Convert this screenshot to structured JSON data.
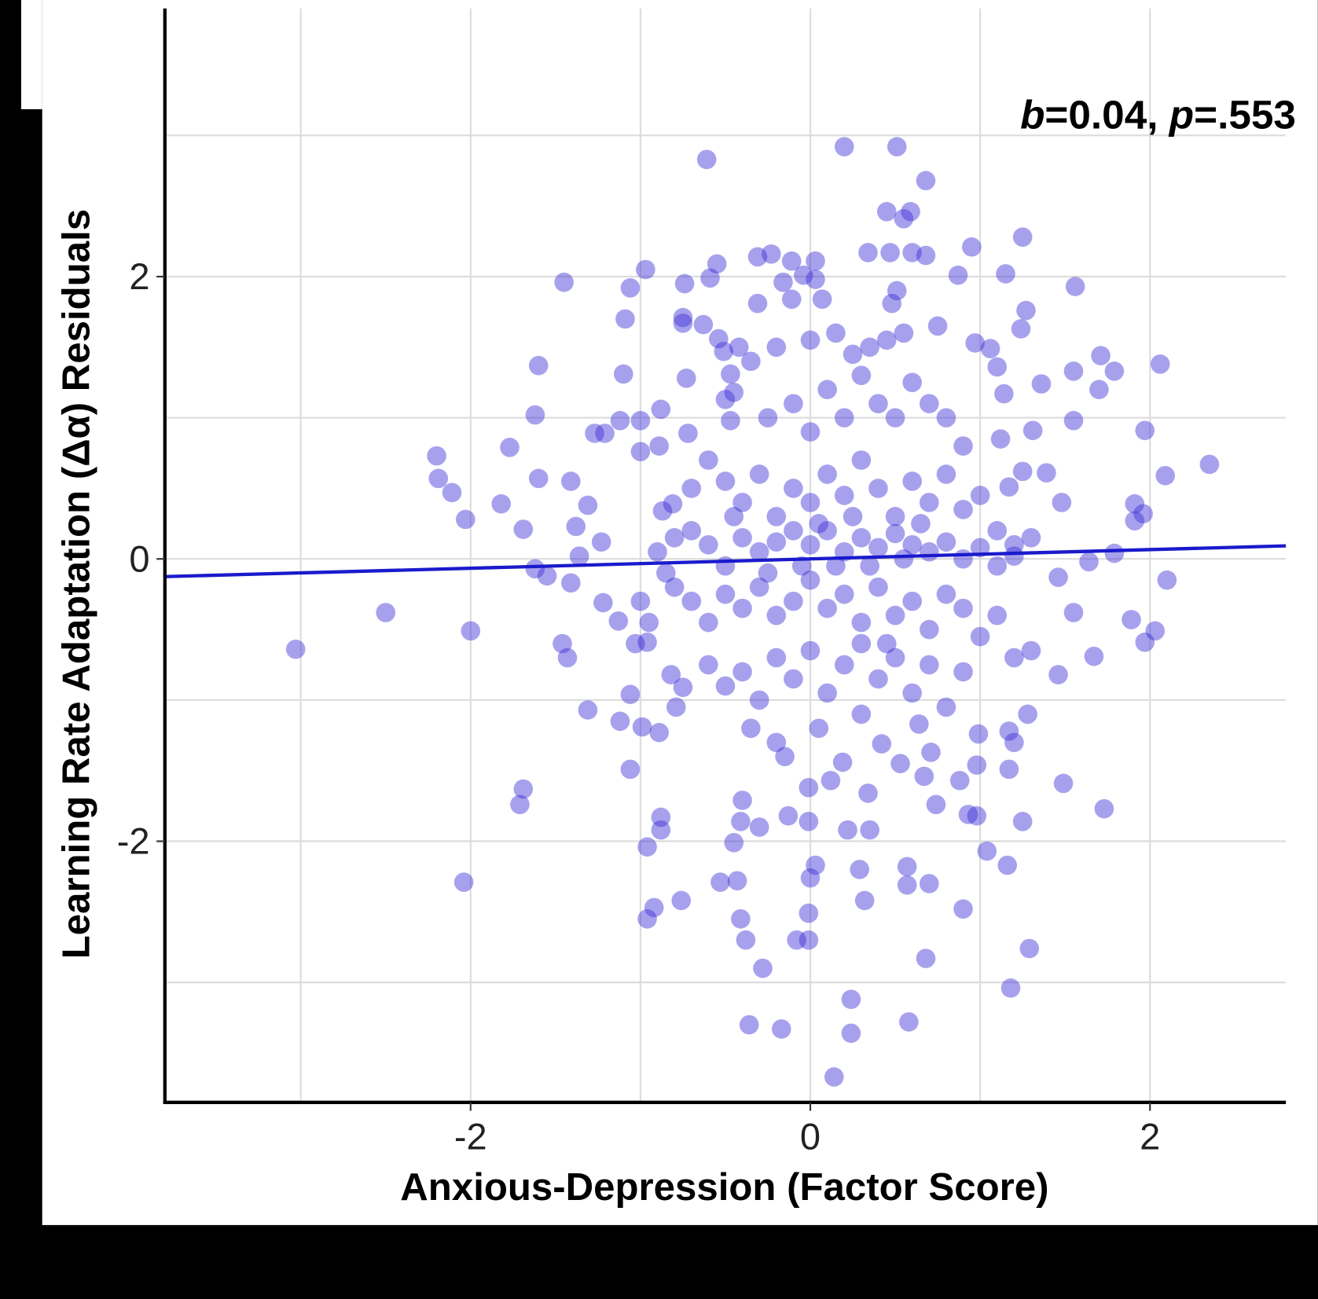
{
  "chart_data": {
    "type": "scatter",
    "xlabel": "Anxious-Depression (Factor Score)",
    "ylabel": "Learning Rate Adaptation (Δα) Residuals",
    "xlim": [
      -3.8,
      2.8
    ],
    "ylim": [
      -3.85,
      3.9
    ],
    "xticks": [
      {
        "value": -2,
        "label": "-2"
      },
      {
        "value": 0,
        "label": "0"
      },
      {
        "value": 2,
        "label": "2"
      }
    ],
    "yticks": [
      {
        "value": 2,
        "label": "2"
      },
      {
        "value": 0,
        "label": "0"
      },
      {
        "value": -2,
        "label": "-2"
      }
    ],
    "x_minor_grid": [
      -3,
      -1,
      1
    ],
    "y_minor_grid": [
      3,
      1,
      -1,
      -3
    ],
    "grid": true,
    "annotation": {
      "b_symbol": "b",
      "b_value": "=0.04, ",
      "p_symbol": "p",
      "p_value": "=.553",
      "position": "top-right"
    },
    "regression": {
      "intercept": 0.0,
      "slope": 0.033,
      "color": "#1a1acc"
    },
    "point_color": "#3b2fd6",
    "points": [
      [
        -3.03,
        -0.64
      ],
      [
        -2.5,
        -0.38
      ],
      [
        -2.04,
        -2.29
      ],
      [
        -2.0,
        -0.51
      ],
      [
        -2.2,
        0.73
      ],
      [
        -2.19,
        0.57
      ],
      [
        -2.11,
        0.47
      ],
      [
        -2.03,
        0.28
      ],
      [
        -1.82,
        0.39
      ],
      [
        -1.77,
        0.79
      ],
      [
        -1.69,
        0.21
      ],
      [
        -1.69,
        -1.63
      ],
      [
        -1.71,
        -1.74
      ],
      [
        -1.62,
        1.02
      ],
      [
        -1.6,
        1.37
      ],
      [
        -1.6,
        0.57
      ],
      [
        -1.62,
        -0.07
      ],
      [
        -1.55,
        -0.12
      ],
      [
        -1.41,
        -0.17
      ],
      [
        -1.45,
        1.96
      ],
      [
        -1.41,
        0.55
      ],
      [
        -1.46,
        -0.6
      ],
      [
        -1.43,
        -0.7
      ],
      [
        -1.38,
        0.23
      ],
      [
        -1.31,
        0.38
      ],
      [
        -1.31,
        -1.07
      ],
      [
        -1.36,
        0.02
      ],
      [
        -1.27,
        0.89
      ],
      [
        -1.21,
        0.89
      ],
      [
        -1.23,
        0.12
      ],
      [
        -1.22,
        -0.31
      ],
      [
        -1.12,
        -1.15
      ],
      [
        -1.1,
        1.31
      ],
      [
        -1.12,
        0.98
      ],
      [
        -1.09,
        1.7
      ],
      [
        -1.06,
        1.92
      ],
      [
        -0.97,
        2.05
      ],
      [
        -1.06,
        -1.49
      ],
      [
        -0.96,
        -2.04
      ],
      [
        -0.96,
        -2.55
      ],
      [
        -0.92,
        -2.47
      ],
      [
        -0.88,
        -1.83
      ],
      [
        -0.88,
        -1.92
      ],
      [
        -0.99,
        -1.19
      ],
      [
        -1.06,
        -0.96
      ],
      [
        -0.89,
        -1.23
      ],
      [
        -1.03,
        -0.6
      ],
      [
        -0.96,
        -0.59
      ],
      [
        -1.13,
        -0.44
      ],
      [
        -1.0,
        0.98
      ],
      [
        -1.0,
        0.76
      ],
      [
        -0.88,
        1.06
      ],
      [
        -0.89,
        0.8
      ],
      [
        -0.87,
        0.34
      ],
      [
        -0.81,
        0.39
      ],
      [
        -0.76,
        -2.42
      ],
      [
        -0.74,
        1.95
      ],
      [
        -0.75,
        1.67
      ],
      [
        -0.75,
        1.71
      ],
      [
        -0.73,
        1.28
      ],
      [
        -0.72,
        0.89
      ],
      [
        -0.75,
        -0.91
      ],
      [
        -0.79,
        -1.05
      ],
      [
        -0.82,
        -0.82
      ],
      [
        -0.63,
        1.66
      ],
      [
        -0.61,
        2.83
      ],
      [
        -0.59,
        1.99
      ],
      [
        -0.55,
        2.09
      ],
      [
        -0.54,
        1.56
      ],
      [
        -0.51,
        1.47
      ],
      [
        -0.42,
        1.5
      ],
      [
        -0.47,
        1.31
      ],
      [
        -0.45,
        1.18
      ],
      [
        -0.5,
        1.13
      ],
      [
        -0.47,
        0.98
      ],
      [
        -0.31,
        2.14
      ],
      [
        -0.23,
        2.16
      ],
      [
        -0.31,
        1.81
      ],
      [
        -0.16,
        1.96
      ],
      [
        -0.11,
        1.84
      ],
      [
        -0.11,
        2.11
      ],
      [
        0.03,
        2.11
      ],
      [
        -0.04,
        2.01
      ],
      [
        0.03,
        1.98
      ],
      [
        0.07,
        1.84
      ],
      [
        0.2,
        2.92
      ],
      [
        0.51,
        2.92
      ],
      [
        0.68,
        2.68
      ],
      [
        0.45,
        2.46
      ],
      [
        0.59,
        2.46
      ],
      [
        0.55,
        2.41
      ],
      [
        0.34,
        2.17
      ],
      [
        0.47,
        2.17
      ],
      [
        0.6,
        2.17
      ],
      [
        0.68,
        2.15
      ],
      [
        0.51,
        1.9
      ],
      [
        0.48,
        1.81
      ],
      [
        0.95,
        2.21
      ],
      [
        0.87,
        2.01
      ],
      [
        1.15,
        2.02
      ],
      [
        1.25,
        2.28
      ],
      [
        1.27,
        1.76
      ],
      [
        1.24,
        1.63
      ],
      [
        1.56,
        1.93
      ],
      [
        1.71,
        1.44
      ],
      [
        1.79,
        1.33
      ],
      [
        1.7,
        1.2
      ],
      [
        2.06,
        1.38
      ],
      [
        1.55,
        1.33
      ],
      [
        1.55,
        0.98
      ],
      [
        1.36,
        1.24
      ],
      [
        0.97,
        1.53
      ],
      [
        1.06,
        1.49
      ],
      [
        1.1,
        1.36
      ],
      [
        1.14,
        1.17
      ],
      [
        1.31,
        0.91
      ],
      [
        1.12,
        0.85
      ],
      [
        1.39,
        0.61
      ],
      [
        1.25,
        0.62
      ],
      [
        1.17,
        0.51
      ],
      [
        1.97,
        0.91
      ],
      [
        2.35,
        0.67
      ],
      [
        2.09,
        0.59
      ],
      [
        1.91,
        0.39
      ],
      [
        1.96,
        0.32
      ],
      [
        1.91,
        0.27
      ],
      [
        1.48,
        0.4
      ],
      [
        1.79,
        0.04
      ],
      [
        1.64,
        -0.02
      ],
      [
        2.1,
        -0.15
      ],
      [
        1.46,
        -0.13
      ],
      [
        1.55,
        -0.38
      ],
      [
        1.89,
        -0.43
      ],
      [
        2.03,
        -0.51
      ],
      [
        1.97,
        -0.59
      ],
      [
        1.67,
        -0.69
      ],
      [
        1.46,
        -0.82
      ],
      [
        1.28,
        -1.1
      ],
      [
        1.49,
        -1.59
      ],
      [
        1.73,
        -1.77
      ],
      [
        1.25,
        -1.86
      ],
      [
        1.16,
        -2.17
      ],
      [
        1.04,
        -2.07
      ],
      [
        1.29,
        -2.76
      ],
      [
        1.18,
        -3.04
      ],
      [
        0.9,
        -2.48
      ],
      [
        0.68,
        -2.83
      ],
      [
        0.7,
        -2.3
      ],
      [
        0.57,
        -2.18
      ],
      [
        0.57,
        -2.31
      ],
      [
        0.58,
        -3.28
      ],
      [
        0.24,
        -3.36
      ],
      [
        0.24,
        -3.12
      ],
      [
        0.14,
        -3.67
      ],
      [
        -0.17,
        -3.33
      ],
      [
        -0.36,
        -3.3
      ],
      [
        -0.28,
        -2.9
      ],
      [
        -0.38,
        -2.7
      ],
      [
        -0.08,
        -2.7
      ],
      [
        -0.01,
        -2.7
      ],
      [
        -0.01,
        -2.51
      ],
      [
        -0.41,
        -2.55
      ],
      [
        -0.53,
        -2.29
      ],
      [
        -0.43,
        -2.28
      ],
      [
        -0.45,
        -2.01
      ],
      [
        -0.41,
        -1.86
      ],
      [
        -0.4,
        -1.71
      ],
      [
        -0.3,
        -1.9
      ],
      [
        -0.13,
        -1.82
      ],
      [
        -0.01,
        -1.86
      ],
      [
        0.0,
        -2.26
      ],
      [
        0.03,
        -2.17
      ],
      [
        0.22,
        -1.92
      ],
      [
        0.35,
        -1.92
      ],
      [
        0.29,
        -2.2
      ],
      [
        0.32,
        -2.42
      ],
      [
        0.19,
        -1.44
      ],
      [
        0.34,
        -1.66
      ],
      [
        -0.01,
        -1.62
      ],
      [
        0.12,
        -1.57
      ],
      [
        0.53,
        -1.45
      ],
      [
        0.67,
        -1.54
      ],
      [
        0.74,
        -1.74
      ],
      [
        0.88,
        -1.57
      ],
      [
        0.93,
        -1.81
      ],
      [
        0.98,
        -1.82
      ],
      [
        0.98,
        -1.46
      ],
      [
        0.99,
        -1.24
      ],
      [
        1.17,
        -1.22
      ],
      [
        1.2,
        -1.3
      ],
      [
        1.17,
        -1.49
      ],
      [
        0.71,
        -1.37
      ],
      [
        0.64,
        -1.17
      ],
      [
        0.42,
        -1.31
      ],
      [
        -0.6,
        0.7
      ],
      [
        -0.5,
        0.55
      ],
      [
        -0.4,
        0.4
      ],
      [
        -0.3,
        0.6
      ],
      [
        -0.2,
        0.3
      ],
      [
        -0.1,
        0.5
      ],
      [
        0.0,
        0.4
      ],
      [
        0.1,
        0.6
      ],
      [
        0.2,
        0.45
      ],
      [
        0.3,
        0.7
      ],
      [
        0.4,
        0.5
      ],
      [
        0.5,
        0.3
      ],
      [
        0.6,
        0.55
      ],
      [
        0.7,
        0.4
      ],
      [
        0.8,
        0.6
      ],
      [
        0.9,
        0.35
      ],
      [
        1.0,
        0.45
      ],
      [
        1.1,
        0.2
      ],
      [
        1.2,
        0.1
      ],
      [
        1.3,
        0.15
      ],
      [
        -0.7,
        0.2
      ],
      [
        -0.6,
        0.1
      ],
      [
        -0.5,
        -0.05
      ],
      [
        -0.4,
        0.15
      ],
      [
        -0.3,
        0.05
      ],
      [
        -0.2,
        0.12
      ],
      [
        -0.1,
        0.2
      ],
      [
        0.0,
        0.1
      ],
      [
        0.1,
        0.2
      ],
      [
        0.2,
        0.05
      ],
      [
        0.3,
        0.15
      ],
      [
        0.4,
        0.08
      ],
      [
        0.5,
        0.18
      ],
      [
        0.6,
        0.1
      ],
      [
        0.7,
        0.05
      ],
      [
        0.8,
        0.12
      ],
      [
        0.9,
        0.0
      ],
      [
        1.0,
        0.08
      ],
      [
        1.1,
        -0.05
      ],
      [
        1.2,
        0.02
      ],
      [
        -0.8,
        -0.2
      ],
      [
        -0.7,
        -0.3
      ],
      [
        -0.6,
        -0.45
      ],
      [
        -0.5,
        -0.25
      ],
      [
        -0.4,
        -0.35
      ],
      [
        -0.3,
        -0.2
      ],
      [
        -0.2,
        -0.4
      ],
      [
        -0.1,
        -0.3
      ],
      [
        0.0,
        -0.15
      ],
      [
        0.1,
        -0.35
      ],
      [
        0.2,
        -0.25
      ],
      [
        0.3,
        -0.45
      ],
      [
        0.4,
        -0.2
      ],
      [
        0.5,
        -0.4
      ],
      [
        0.6,
        -0.3
      ],
      [
        0.7,
        -0.5
      ],
      [
        0.8,
        -0.25
      ],
      [
        0.9,
        -0.35
      ],
      [
        1.0,
        -0.55
      ],
      [
        1.1,
        -0.4
      ],
      [
        -0.6,
        -0.75
      ],
      [
        -0.5,
        -0.9
      ],
      [
        -0.4,
        -0.8
      ],
      [
        -0.3,
        -1.0
      ],
      [
        -0.2,
        -0.7
      ],
      [
        -0.1,
        -0.85
      ],
      [
        0.0,
        -0.65
      ],
      [
        0.1,
        -0.95
      ],
      [
        0.2,
        -0.75
      ],
      [
        0.3,
        -0.6
      ],
      [
        0.4,
        -0.85
      ],
      [
        0.5,
        -0.7
      ],
      [
        0.6,
        -0.95
      ],
      [
        0.7,
        -0.75
      ],
      [
        0.8,
        -1.05
      ],
      [
        0.9,
        -0.8
      ],
      [
        1.2,
        -0.7
      ],
      [
        1.3,
        -0.65
      ],
      [
        -0.35,
        -1.2
      ],
      [
        -0.2,
        -1.3
      ],
      [
        -0.15,
        -1.4
      ],
      [
        0.05,
        -1.2
      ],
      [
        0.3,
        -1.1
      ],
      [
        -0.25,
        1.0
      ],
      [
        -0.1,
        1.1
      ],
      [
        0.0,
        0.9
      ],
      [
        0.1,
        1.2
      ],
      [
        0.2,
        1.0
      ],
      [
        0.3,
        1.3
      ],
      [
        0.4,
        1.1
      ],
      [
        0.5,
        1.0
      ],
      [
        0.6,
        1.25
      ],
      [
        0.7,
        1.1
      ],
      [
        0.8,
        1.0
      ],
      [
        0.9,
        0.8
      ],
      [
        -0.35,
        1.4
      ],
      [
        -0.2,
        1.5
      ],
      [
        0.0,
        1.55
      ],
      [
        0.15,
        1.6
      ],
      [
        0.25,
        1.45
      ],
      [
        0.35,
        1.5
      ],
      [
        0.45,
        1.55
      ],
      [
        0.55,
        1.6
      ],
      [
        0.75,
        1.65
      ],
      [
        -0.9,
        0.05
      ],
      [
        -0.85,
        -0.1
      ],
      [
        -1.0,
        -0.3
      ],
      [
        -0.95,
        -0.45
      ],
      [
        -0.7,
        0.5
      ],
      [
        -0.8,
        0.15
      ],
      [
        -0.45,
        0.3
      ],
      [
        0.15,
        -0.05
      ],
      [
        0.35,
        -0.05
      ],
      [
        0.55,
        0.0
      ],
      [
        0.25,
        0.3
      ],
      [
        0.05,
        0.25
      ],
      [
        -0.05,
        -0.05
      ],
      [
        -0.25,
        -0.1
      ],
      [
        0.45,
        -0.6
      ],
      [
        0.65,
        0.25
      ]
    ]
  }
}
